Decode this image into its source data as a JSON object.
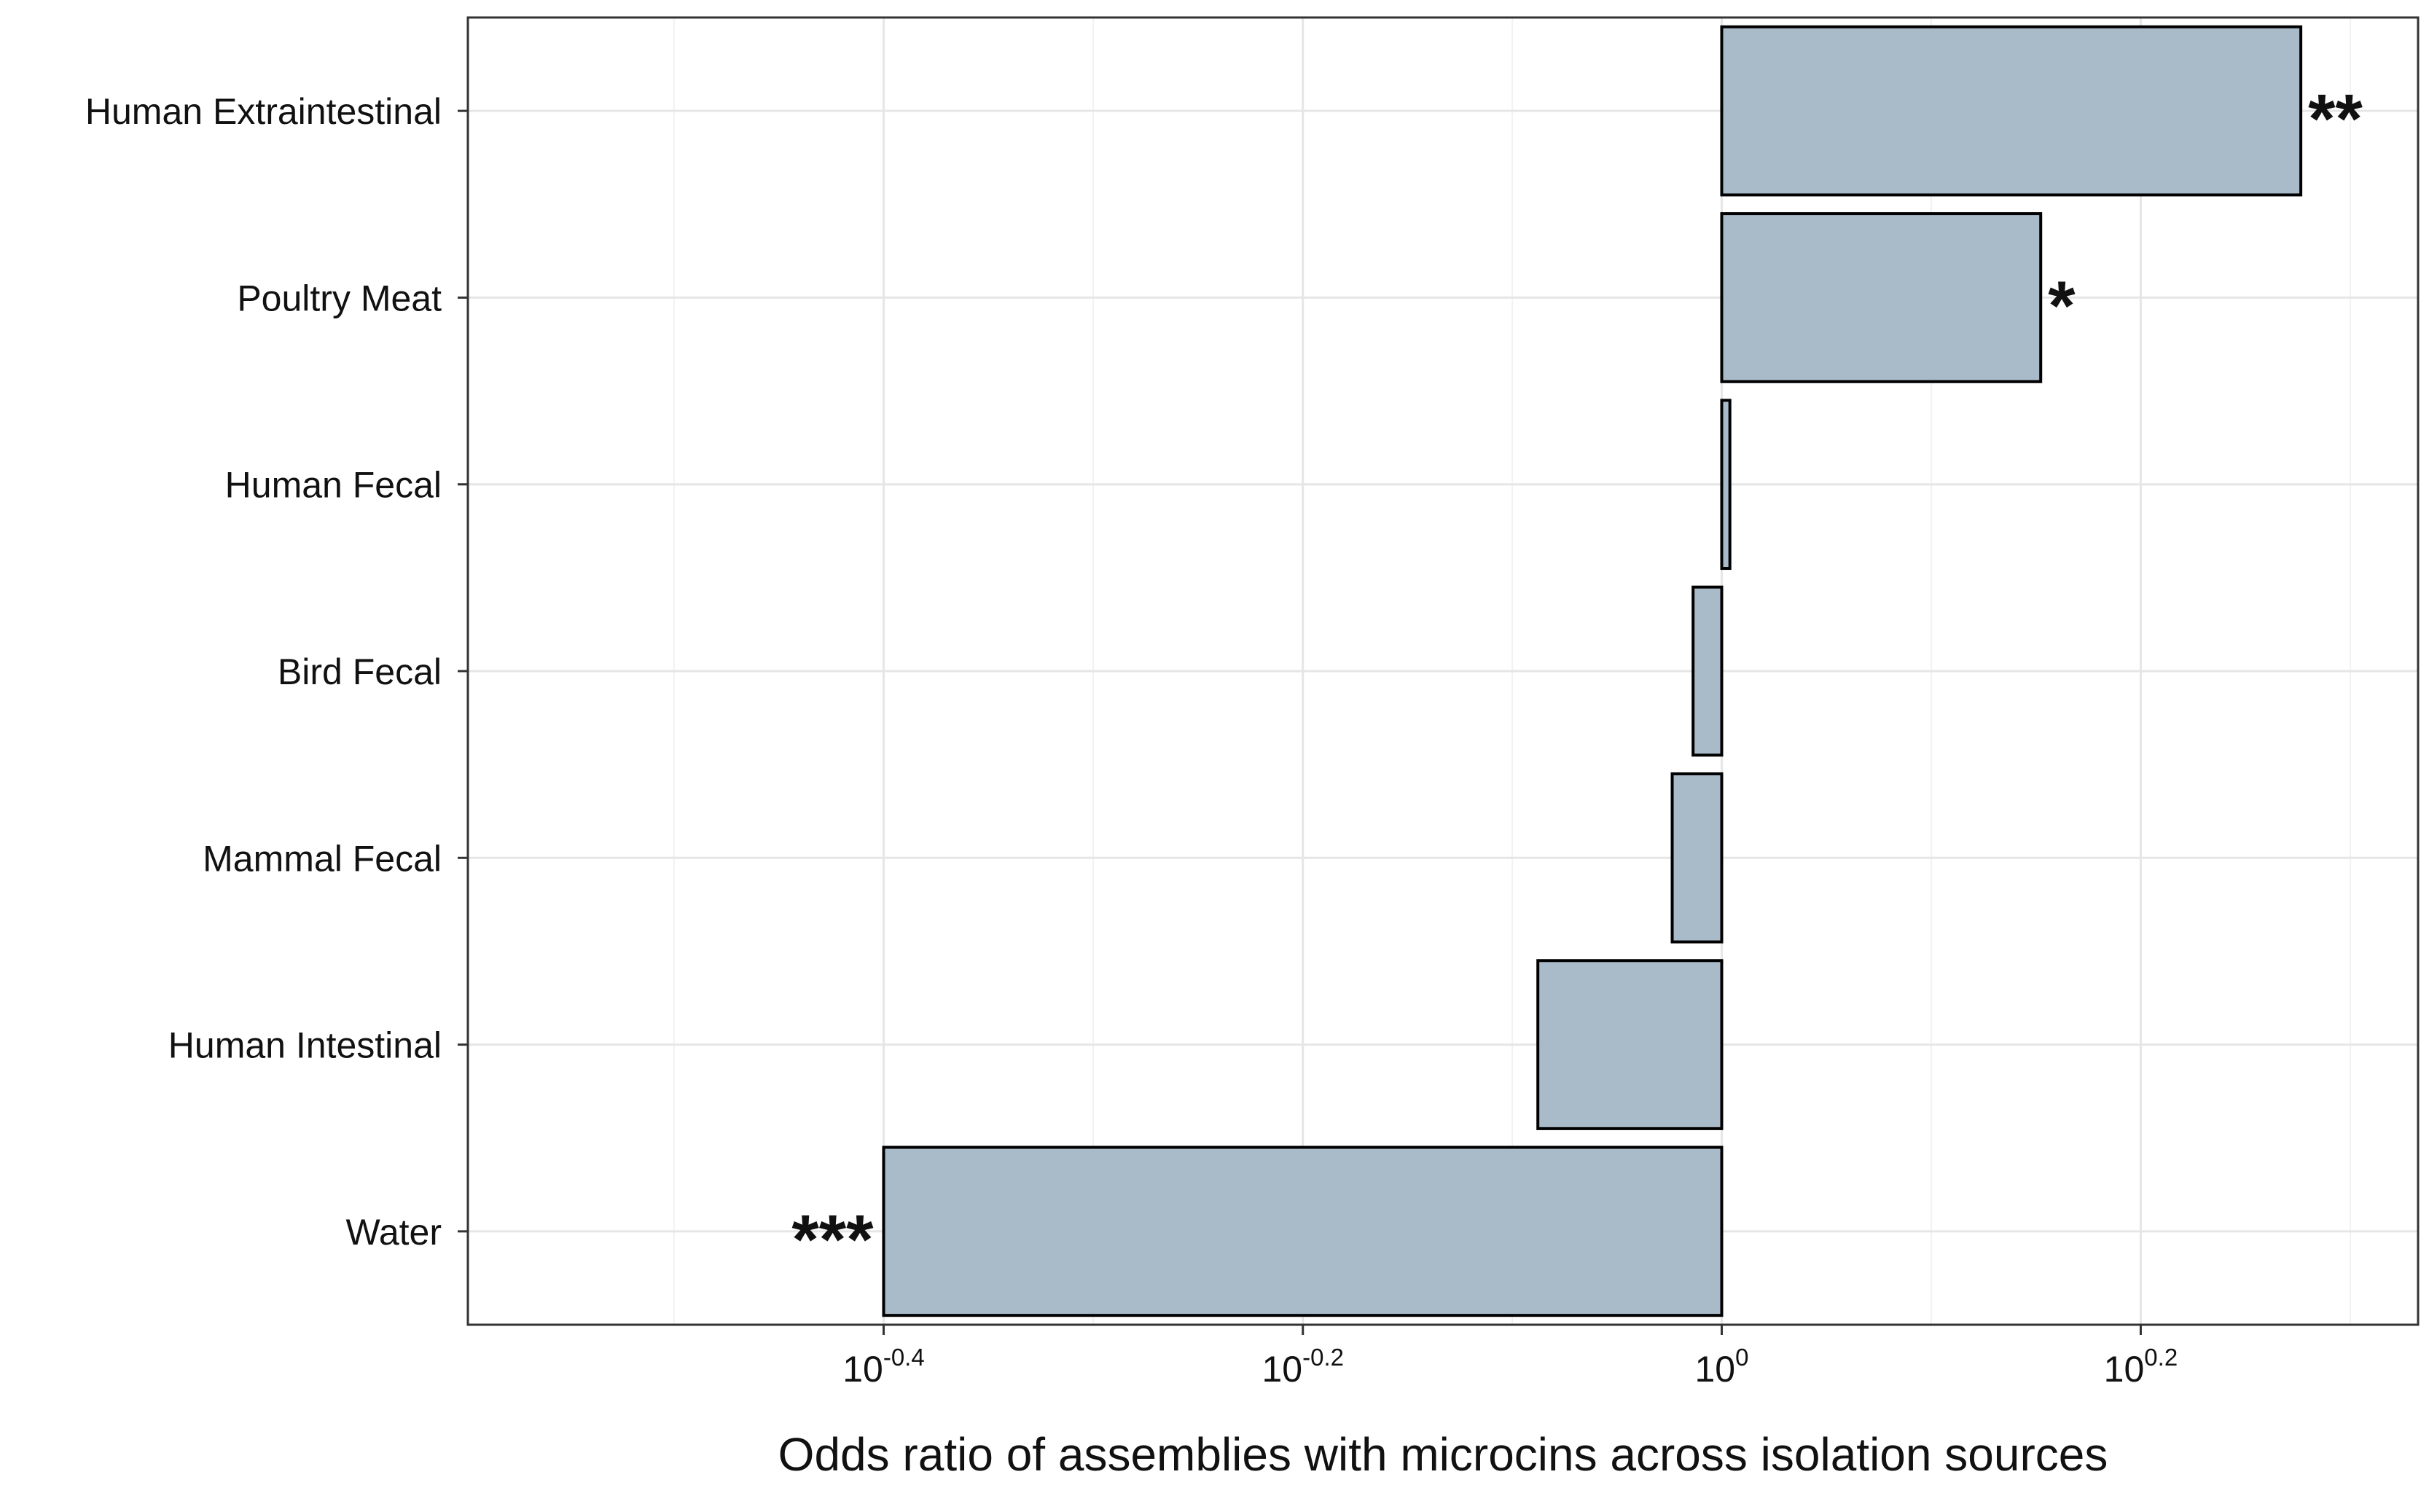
{
  "chart_data": {
    "type": "bar",
    "orientation": "horizontal",
    "categories": [
      "Human Extraintestinal",
      "Poultry Meat",
      "Human Fecal",
      "Bird Fecal",
      "Mammal Fecal",
      "Human Intestinal",
      "Water"
    ],
    "values": [
      1.89,
      1.42,
      1.009,
      0.969,
      0.947,
      0.817,
      0.398
    ],
    "significance": [
      "**",
      "*",
      "",
      "",
      "",
      "",
      "***"
    ],
    "xscale": "log10",
    "xbase": 1,
    "xlim": [
      0.252,
      2.15
    ],
    "xticks": [
      {
        "value": 0.398,
        "base": "10",
        "exp": "-0.4"
      },
      {
        "value": 0.631,
        "base": "10",
        "exp": "-0.2"
      },
      {
        "value": 1.0,
        "base": "10",
        "exp": "0"
      },
      {
        "value": 1.585,
        "base": "10",
        "exp": "0.2"
      }
    ],
    "xlabel": "Odds ratio of assemblies with microcins across isolation sources",
    "ylabel": "",
    "title": "",
    "grid": true,
    "legend": "none",
    "bar_color": "#a9bac8",
    "bar_edge_color": "#000000"
  }
}
